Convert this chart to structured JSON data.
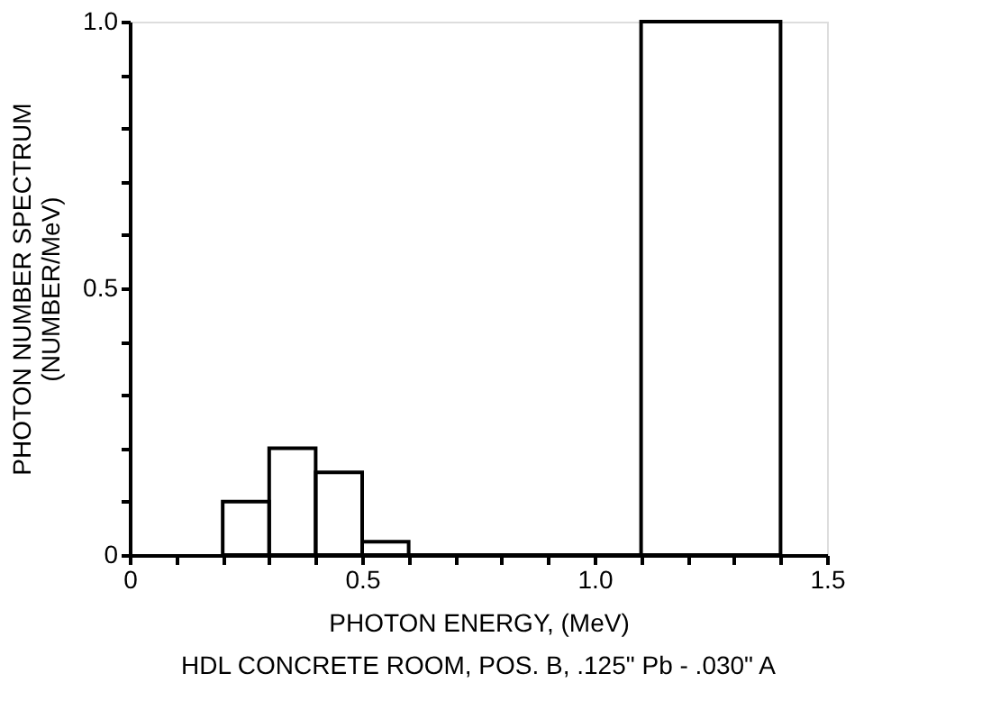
{
  "chart_data": {
    "type": "histogram",
    "xlabel": "PHOTON ENERGY, (MeV)",
    "ylabel": "PHOTON NUMBER SPECTRUM\n(NUMBER/MeV)",
    "annotations": [
      "HDL CONCRETE ROOM, POS. B, .125\" Pb - .030\" A"
    ],
    "bins": [
      0.2,
      0.3,
      0.4,
      0.5,
      0.6,
      1.1,
      1.4
    ],
    "values": [
      0.1,
      0.2,
      0.155,
      0.025,
      0,
      1.0
    ],
    "color": "#000000",
    "xlim": [
      0,
      1.5
    ],
    "ylim": [
      0,
      1.0
    ],
    "xticks": [
      0,
      {
        "value": 0.1,
        "label": null
      },
      {
        "value": 0.2,
        "label": null
      },
      {
        "value": 0.3,
        "label": null
      },
      {
        "value": 0.4,
        "label": null
      },
      0.5,
      {
        "value": 0.6,
        "label": null
      },
      {
        "value": 0.7,
        "label": null
      },
      {
        "value": 0.8,
        "label": null
      },
      {
        "value": 0.9,
        "label": null
      },
      {
        "value": 1.0,
        "label": "1.0"
      },
      {
        "value": 1.1,
        "label": null
      },
      {
        "value": 1.2,
        "label": null
      },
      {
        "value": 1.3,
        "label": null
      },
      {
        "value": 1.4,
        "label": null
      },
      1.5
    ],
    "yticks": [
      0,
      {
        "value": 0.1,
        "label": null
      },
      {
        "value": 0.2,
        "label": null
      },
      {
        "value": 0.3,
        "label": null
      },
      {
        "value": 0.4,
        "label": null
      },
      0.5,
      {
        "value": 0.6,
        "label": null
      },
      {
        "value": 0.7,
        "label": null
      },
      {
        "value": 0.8,
        "label": null
      },
      {
        "value": 0.9,
        "label": null
      },
      {
        "value": 1.0,
        "label": "1.0"
      }
    ],
    "grid": false
  }
}
